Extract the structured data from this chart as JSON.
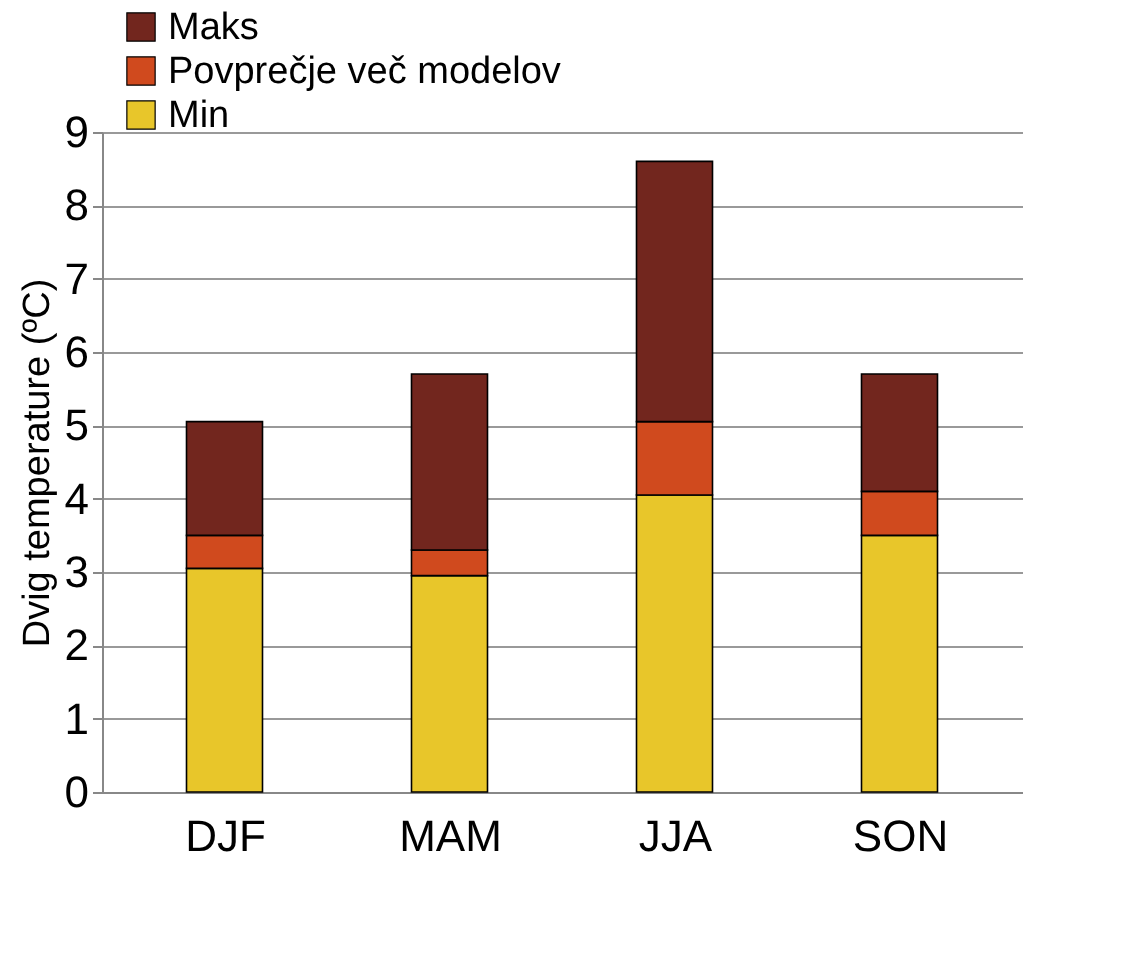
{
  "chart_data": {
    "type": "bar",
    "stacked": true,
    "ylabel": "Dvig temperature (ºC)",
    "categories": [
      "DJF",
      "MAM",
      "JJA",
      "SON"
    ],
    "series": [
      {
        "name": "Min",
        "color": "#e8c62a",
        "values": [
          3.05,
          2.95,
          4.05,
          3.5
        ]
      },
      {
        "name": "Povprečje več modelov",
        "color": "#d04a1e",
        "values": [
          0.45,
          0.35,
          1.0,
          0.6
        ]
      },
      {
        "name": "Maks",
        "color": "#72261e",
        "values": [
          1.55,
          2.4,
          3.55,
          1.6
        ]
      }
    ],
    "ylim": [
      0,
      9
    ],
    "yticks": [
      0,
      1,
      2,
      3,
      4,
      5,
      6,
      7,
      8,
      9
    ],
    "grid": "y",
    "legend": "top left"
  }
}
